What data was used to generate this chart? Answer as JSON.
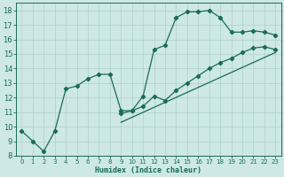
{
  "xlabel": "Humidex (Indice chaleur)",
  "bg_color": "#cde8e5",
  "line_color": "#1a6b5a",
  "grid_color": "#afd0cc",
  "xlim": [
    -0.5,
    23.5
  ],
  "ylim": [
    8,
    18.5
  ],
  "xticks": [
    0,
    1,
    2,
    3,
    4,
    5,
    6,
    7,
    8,
    9,
    10,
    11,
    12,
    13,
    14,
    15,
    16,
    17,
    18,
    19,
    20,
    21,
    22,
    23
  ],
  "yticks": [
    8,
    9,
    10,
    11,
    12,
    13,
    14,
    15,
    16,
    17,
    18
  ],
  "curve1_x": [
    0,
    1,
    2,
    3,
    4,
    5,
    6,
    7,
    8,
    9,
    10,
    11,
    12,
    13,
    14,
    15,
    16,
    17,
    18,
    19,
    20,
    21,
    22,
    23
  ],
  "curve1_y": [
    9.7,
    9.0,
    8.3,
    9.7,
    12.6,
    12.8,
    13.3,
    13.6,
    13.6,
    11.1,
    11.1,
    12.1,
    15.3,
    15.6,
    17.5,
    17.9,
    17.9,
    18.0,
    17.5,
    16.5,
    16.5,
    16.6,
    16.5,
    16.3
  ],
  "curve2_x": [
    9,
    10,
    11,
    12,
    13,
    14,
    15,
    16,
    17,
    18,
    19,
    20,
    21,
    22,
    23
  ],
  "curve2_y": [
    10.9,
    11.1,
    11.4,
    12.1,
    11.8,
    12.5,
    13.0,
    13.5,
    14.0,
    14.4,
    14.7,
    15.1,
    15.4,
    15.5,
    15.3
  ],
  "curve3_x": [
    9,
    23
  ],
  "curve3_y": [
    10.3,
    15.1
  ]
}
